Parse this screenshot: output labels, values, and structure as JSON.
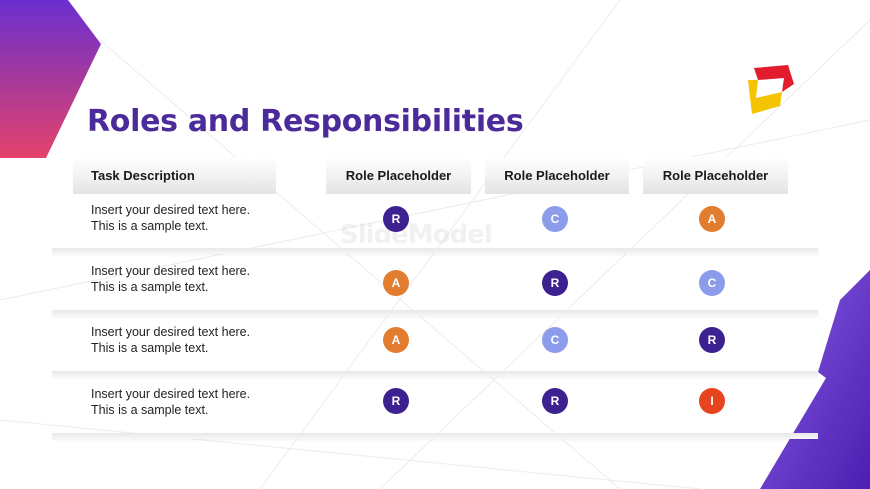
{
  "slide": {
    "title": "Roles and Responsibilities",
    "watermark": "SlideModel"
  },
  "colors": {
    "title": "#4b2a9a",
    "R": "#3d2190",
    "C": "#8c9cea",
    "A": "#e27c2f",
    "I": "#e8431f"
  },
  "table": {
    "headers": {
      "task": "Task Description",
      "roles": [
        "Role Placeholder",
        "Role Placeholder",
        "Role Placeholder"
      ]
    },
    "rows": [
      {
        "text_line1": "Insert your desired text here.",
        "text_line2": "This is a sample text.",
        "roles": [
          "R",
          "C",
          "A"
        ]
      },
      {
        "text_line1": "Insert your desired text here.",
        "text_line2": "This is a sample text.",
        "roles": [
          "A",
          "R",
          "C"
        ]
      },
      {
        "text_line1": "Insert your desired text here.",
        "text_line2": "This is a sample text.",
        "roles": [
          "A",
          "C",
          "R"
        ]
      },
      {
        "text_line1": "Insert your desired text here.",
        "text_line2": "This is a sample text.",
        "roles": [
          "R",
          "R",
          "I"
        ]
      }
    ]
  }
}
